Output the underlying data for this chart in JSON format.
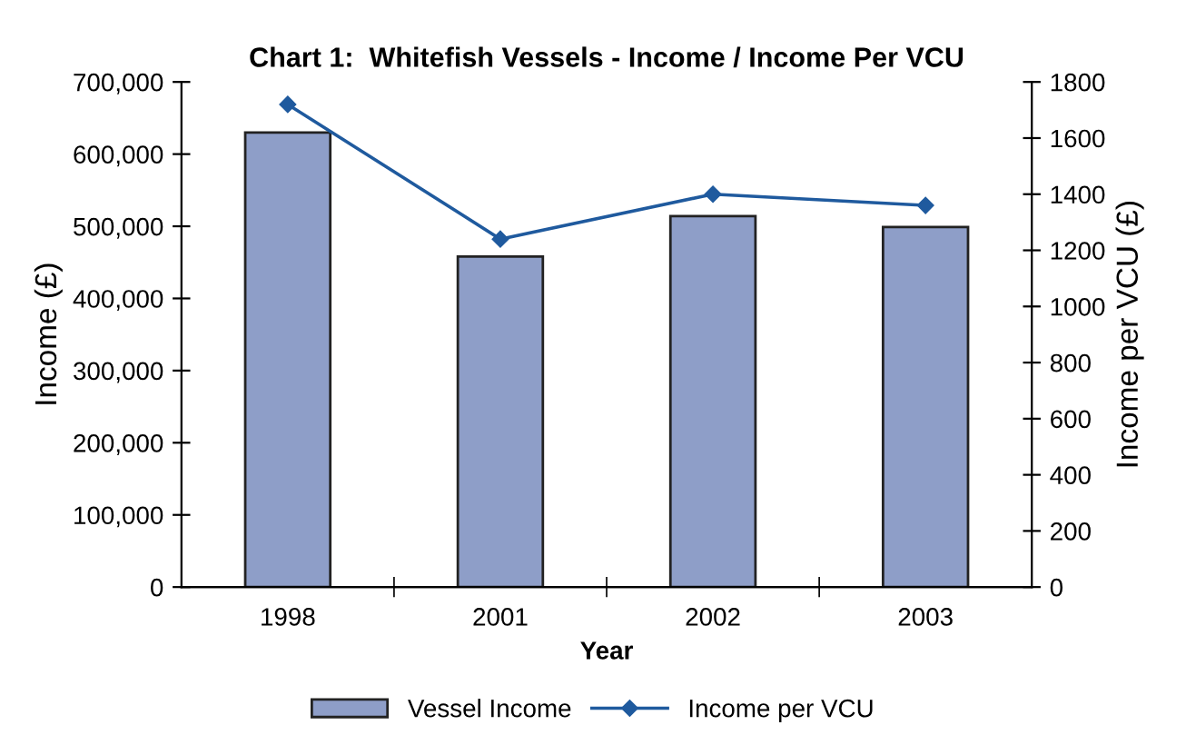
{
  "chart_data": {
    "type": "bar",
    "title": "Chart 1:  Whitefish Vessels - Income / Income Per VCU",
    "xlabel": "Year",
    "ylabel": "Income (£)",
    "y2label": "Income per VCU (£)",
    "categories": [
      "1998",
      "2001",
      "2002",
      "2003"
    ],
    "series": [
      {
        "name": "Vessel Income",
        "color": "#8e9ec8",
        "values": [
          630000,
          458000,
          514000,
          499000
        ]
      },
      {
        "name": "Income per VCU",
        "type": "line",
        "axis": "y2",
        "color": "#1f5a9e",
        "marker": "diamond",
        "values": [
          1720,
          1240,
          1400,
          1360
        ]
      }
    ],
    "ylim": [
      0,
      700000
    ],
    "yticks": [
      {
        "value": 0,
        "label": "0"
      },
      {
        "value": 100000,
        "label": "100,000"
      },
      {
        "value": 200000,
        "label": "200,000"
      },
      {
        "value": 300000,
        "label": "300,000"
      },
      {
        "value": 400000,
        "label": "400,000"
      },
      {
        "value": 500000,
        "label": "500,000"
      },
      {
        "value": 600000,
        "label": "600,000"
      },
      {
        "value": 700000,
        "label": "700,000"
      }
    ],
    "y2lim": [
      0,
      1800
    ],
    "y2ticks": [
      0,
      200,
      400,
      600,
      800,
      1000,
      1200,
      1400,
      1600,
      1800
    ],
    "legend": "bottom",
    "grid": false
  }
}
